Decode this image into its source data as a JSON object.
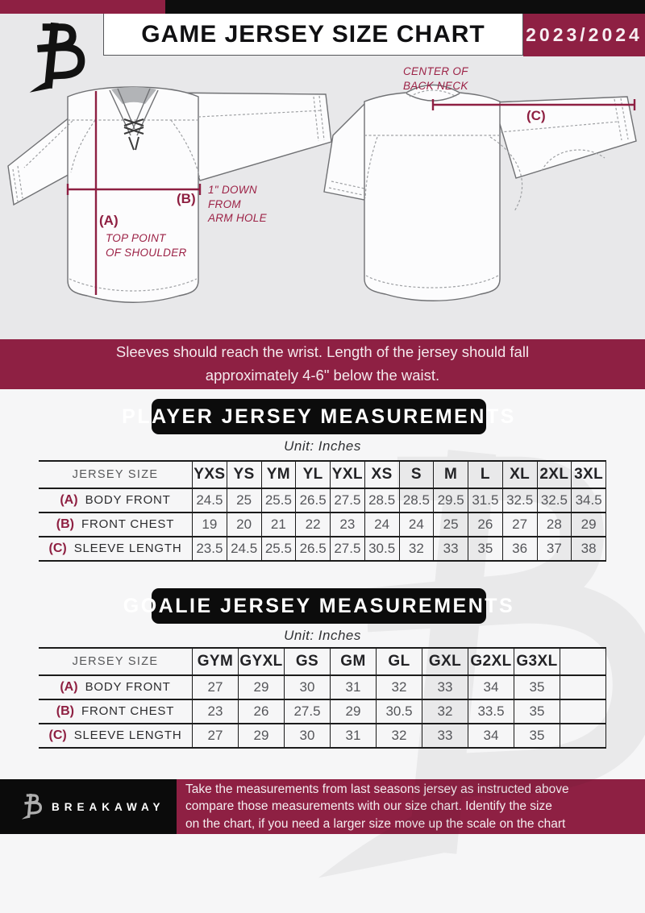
{
  "header": {
    "title": "GAME JERSEY SIZE CHART",
    "season": "2023/2024"
  },
  "diagram": {
    "front": {
      "label_a": "(A)",
      "label_a_note": "TOP POINT\nOF SHOULDER",
      "label_b": "(B)",
      "label_b_note": "1\" DOWN\nFROM\nARM HOLE"
    },
    "back": {
      "label_c": "(C)",
      "label_c_note": "CENTER OF\nBACK NECK"
    }
  },
  "notice": "Sleeves should reach the wrist. Length of the jersey should fall\napproximately 4-6\" below the waist.",
  "player_section": {
    "title": "PLAYER JERSEY MEASUREMENTS",
    "unit": "Unit: Inches",
    "table": {
      "corner": "JERSEY SIZE",
      "sizes": [
        "YXS",
        "YS",
        "YM",
        "YL",
        "YXL",
        "XS",
        "S",
        "M",
        "L",
        "XL",
        "2XL",
        "3XL"
      ],
      "rows": [
        {
          "key": "(A)",
          "label": "BODY FRONT",
          "values": [
            "24.5",
            "25",
            "25.5",
            "26.5",
            "27.5",
            "28.5",
            "28.5",
            "29.5",
            "31.5",
            "32.5",
            "32.5",
            "34.5"
          ]
        },
        {
          "key": "(B)",
          "label": "FRONT CHEST",
          "values": [
            "19",
            "20",
            "21",
            "22",
            "23",
            "24",
            "24",
            "25",
            "26",
            "27",
            "28",
            "29"
          ]
        },
        {
          "key": "(C)",
          "label": "SLEEVE LENGTH",
          "values": [
            "23.5",
            "24.5",
            "25.5",
            "26.5",
            "27.5",
            "30.5",
            "32",
            "33",
            "35",
            "36",
            "37",
            "38"
          ]
        }
      ]
    }
  },
  "goalie_section": {
    "title": "GOALIE JERSEY MEASUREMENTS",
    "unit": "Unit: Inches",
    "table": {
      "corner": "JERSEY SIZE",
      "sizes": [
        "GYM",
        "GYXL",
        "GS",
        "GM",
        "GL",
        "GXL",
        "G2XL",
        "G3XL",
        ""
      ],
      "rows": [
        {
          "key": "(A)",
          "label": "BODY FRONT",
          "values": [
            "27",
            "29",
            "30",
            "31",
            "32",
            "33",
            "34",
            "35",
            ""
          ]
        },
        {
          "key": "(B)",
          "label": "FRONT CHEST",
          "values": [
            "23",
            "26",
            "27.5",
            "29",
            "30.5",
            "32",
            "33.5",
            "35",
            ""
          ]
        },
        {
          "key": "(C)",
          "label": "SLEEVE LENGTH",
          "values": [
            "27",
            "29",
            "30",
            "31",
            "32",
            "33",
            "34",
            "35",
            ""
          ]
        }
      ]
    }
  },
  "footer": {
    "brand": "BREAKAWAY",
    "note": "Take the measurements from last seasons jersey as instructed above\ncompare those measurements with our size chart. Identify the size\non the chart, if you need a larger size move up the scale on the chart"
  }
}
